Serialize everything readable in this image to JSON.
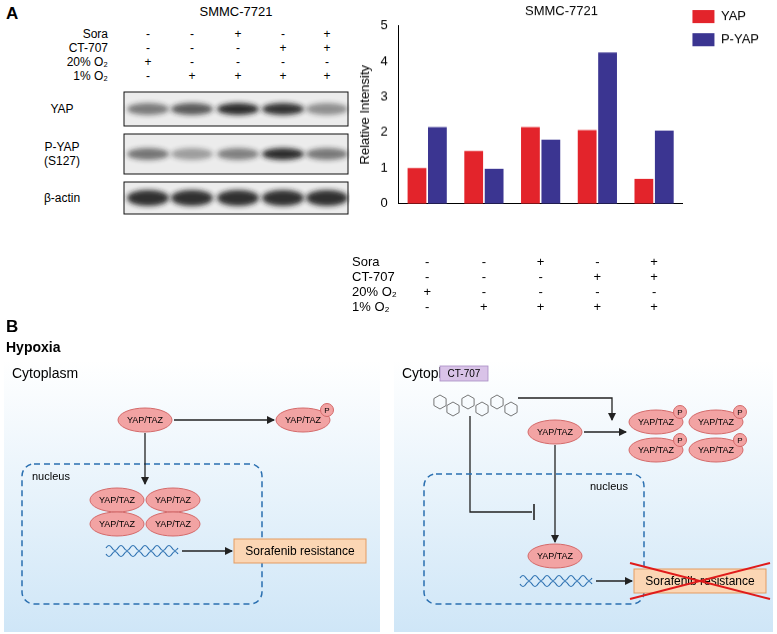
{
  "panel_a": {
    "label": "A",
    "blot": {
      "title": "SMMC-7721",
      "conditions": [
        {
          "label": "Sora",
          "marks": [
            "-",
            "-",
            "+",
            "-",
            "+"
          ]
        },
        {
          "label": "CT-707",
          "marks": [
            "-",
            "-",
            "-",
            "+",
            "+"
          ]
        },
        {
          "label": "20% O₂",
          "marks": [
            "+",
            "-",
            "-",
            "-",
            "-"
          ]
        },
        {
          "label": "1% O₂",
          "marks": [
            "-",
            "+",
            "+",
            "+",
            "+"
          ]
        }
      ],
      "bands": [
        [
          "YAP"
        ],
        [
          "P-YAP",
          "(S127)"
        ],
        [
          "β-actin"
        ]
      ]
    }
  },
  "chart_data": {
    "type": "bar",
    "title": "SMMC-7721",
    "y_label": "Relative Intensity",
    "categories": [
      null,
      null,
      null,
      null,
      null
    ],
    "conditions": [
      {
        "label": "Sora",
        "marks": [
          "-",
          "-",
          "+",
          "-",
          "+"
        ]
      },
      {
        "label": "CT-707",
        "marks": [
          "-",
          "-",
          "-",
          "+",
          "+"
        ]
      },
      {
        "label": "20% O₂",
        "marks": [
          "+",
          "-",
          "-",
          "-",
          "-"
        ]
      },
      {
        "label": "1% O₂",
        "marks": [
          "-",
          "+",
          "+",
          "+",
          "+"
        ]
      }
    ],
    "series": [
      {
        "name": "YAP",
        "color": "#e3242b",
        "values": [
          1.0,
          1.48,
          2.15,
          2.07,
          0.7
        ]
      },
      {
        "name": "P-YAP",
        "color": "#3b3591",
        "values": [
          2.15,
          0.98,
          1.8,
          4.25,
          2.05
        ]
      }
    ],
    "ylim": [
      0,
      5
    ],
    "yticks": [
      0,
      1,
      2,
      3,
      4,
      5
    ],
    "grid": false,
    "legend": "top-right",
    "tick_labels": "y"
  },
  "panel_b": {
    "label": "B",
    "condition": "Hypoxia",
    "left": {
      "compartment": "Cytoplasm",
      "nucleus": "nucleus",
      "protein": "YAP/TAZ",
      "phospho": "P",
      "outcome": "Sorafenib resistance"
    },
    "right": {
      "compartment": "Cytoplasm",
      "drug": "CT-707",
      "nucleus": "nucleus",
      "protein": "YAP/TAZ",
      "phospho": "P",
      "outcome": "Sorafenib resistance"
    }
  }
}
